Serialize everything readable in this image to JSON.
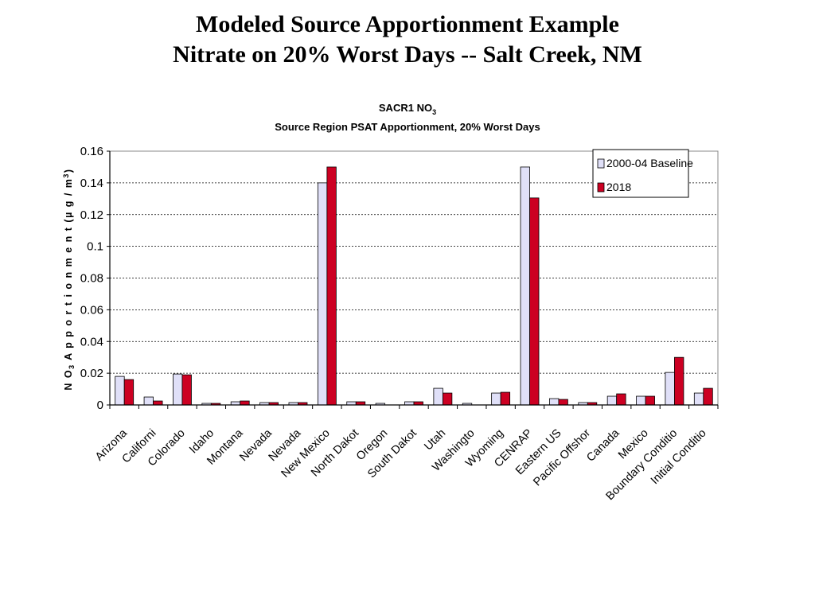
{
  "slide": {
    "title_line1": "Modeled Source Apportionment Example",
    "title_line2": "Nitrate on 20% Worst Days --  Salt Creek, NM"
  },
  "chart_data": {
    "type": "bar",
    "title": "SACR1 NO3",
    "title_main": "SACR1 NO",
    "title_sub": "3",
    "subtitle": "Source Region PSAT Apportionment, 20% Worst Days",
    "ylabel": "NO3 Apportionment (µg/m3)",
    "ylabel_main": "N O",
    "ylabel_sub": "3",
    "ylabel_rest": " A p p o r t i o n m e n t  (µ g / m",
    "ylabel_sup": "3",
    "ylabel_end": ")",
    "xlabel": "",
    "ylim": [
      0,
      0.16
    ],
    "yticks": [
      "0",
      "0.02",
      "0.04",
      "0.06",
      "0.08",
      "0.1",
      "0.12",
      "0.14",
      "0.16"
    ],
    "categories": [
      "Arizona",
      "California",
      "Colorado",
      "Idaho",
      "Montana",
      "Nevada",
      "Nevada",
      "New Mexico",
      "North Dakota",
      "Oregon",
      "South Dakota",
      "Utah",
      "Washington",
      "Wyoming",
      "CENRAP",
      "Eastern US",
      "Pacific Offshore",
      "Canada",
      "Mexico",
      "Boundary Conditions",
      "Initial Conditions"
    ],
    "category_labels": [
      "Arizona",
      "Californi",
      "Colorado",
      "Idaho",
      "Montana",
      "Nevada",
      "Nevada",
      "New Mexico",
      "North Dakot",
      "Oregon",
      "South Dakot",
      "Utah",
      "Washingto",
      "Wyoming",
      "CENRAP",
      "Eastern US",
      "Pacific Offshor",
      "Canada",
      "Mexico",
      "Boundary Conditio",
      "Initial Conditio"
    ],
    "series": [
      {
        "name": "2000-04 Baseline",
        "color": "#e0e0f8",
        "values": [
          0.018,
          0.005,
          0.0195,
          0.001,
          0.002,
          0.0015,
          0.0015,
          0.14,
          0.002,
          0.001,
          0.002,
          0.0105,
          0.001,
          0.0075,
          0.15,
          0.004,
          0.0015,
          0.0055,
          0.0055,
          0.0205,
          0.0075
        ]
      },
      {
        "name": "2018",
        "color": "#cc0022",
        "values": [
          0.016,
          0.0025,
          0.019,
          0.001,
          0.0025,
          0.0015,
          0.0015,
          0.15,
          0.002,
          0.0,
          0.002,
          0.0075,
          0.0,
          0.008,
          0.1305,
          0.0035,
          0.0015,
          0.007,
          0.0055,
          0.03,
          0.0105
        ]
      }
    ],
    "grid": true,
    "legend_position": "top-right"
  }
}
